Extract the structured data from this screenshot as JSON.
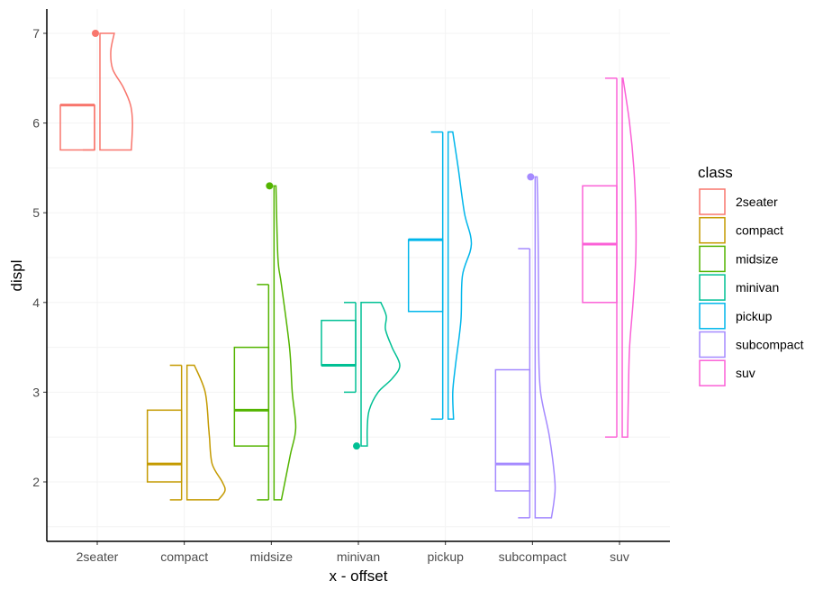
{
  "chart_data": {
    "type": "boxplot-violin",
    "xlabel": "x - offset",
    "ylabel": "displ",
    "ylim": [
      1.35,
      7.27
    ],
    "yticks": [
      2,
      3,
      4,
      5,
      6,
      7
    ],
    "grid": true,
    "legend": {
      "title": "class",
      "placement": "right"
    },
    "categories": [
      "2seater",
      "compact",
      "midsize",
      "minivan",
      "pickup",
      "subcompact",
      "suv"
    ],
    "colors": [
      "#F8766D",
      "#C49A00",
      "#53B400",
      "#00C094",
      "#00B6EB",
      "#A58AFF",
      "#FB61D7"
    ],
    "boxes": [
      {
        "min": 5.7,
        "q1": 5.7,
        "median": 6.2,
        "q3": 6.2,
        "max": 6.2,
        "outliers": [
          7.0
        ]
      },
      {
        "min": 1.8,
        "q1": 2.0,
        "median": 2.2,
        "q3": 2.8,
        "max": 3.3,
        "outliers": []
      },
      {
        "min": 1.8,
        "q1": 2.4,
        "median": 2.8,
        "q3": 3.5,
        "max": 4.2,
        "outliers": [
          5.3
        ]
      },
      {
        "min": 3.0,
        "q1": 3.3,
        "median": 3.3,
        "q3": 3.8,
        "max": 4.0,
        "outliers": [
          2.4
        ]
      },
      {
        "min": 2.7,
        "q1": 3.9,
        "median": 4.7,
        "q3": 4.7,
        "max": 5.9,
        "outliers": []
      },
      {
        "min": 1.6,
        "q1": 1.9,
        "median": 2.2,
        "q3": 3.25,
        "max": 4.6,
        "outliers": [
          5.4
        ]
      },
      {
        "min": 2.5,
        "q1": 4.0,
        "median": 4.65,
        "q3": 5.3,
        "max": 6.5,
        "outliers": []
      }
    ],
    "violins": [
      [
        [
          7.0,
          0.37
        ],
        [
          6.8,
          0.28
        ],
        [
          6.6,
          0.33
        ],
        [
          6.4,
          0.6
        ],
        [
          6.2,
          0.79
        ],
        [
          6.0,
          0.84
        ],
        [
          5.7,
          0.81
        ]
      ],
      [
        [
          3.3,
          0.19
        ],
        [
          3.0,
          0.47
        ],
        [
          2.6,
          0.56
        ],
        [
          2.5,
          0.58
        ],
        [
          2.2,
          0.65
        ],
        [
          2.0,
          0.91
        ],
        [
          1.9,
          0.98
        ],
        [
          1.8,
          0.81
        ]
      ],
      [
        [
          5.3,
          0.05
        ],
        [
          4.5,
          0.1
        ],
        [
          4.2,
          0.19
        ],
        [
          3.5,
          0.4
        ],
        [
          3.0,
          0.47
        ],
        [
          2.6,
          0.56
        ],
        [
          2.3,
          0.42
        ],
        [
          1.8,
          0.19
        ]
      ],
      [
        [
          4.0,
          0.51
        ],
        [
          3.85,
          0.65
        ],
        [
          3.7,
          0.63
        ],
        [
          3.5,
          0.8
        ],
        [
          3.3,
          1.0
        ],
        [
          3.15,
          0.8
        ],
        [
          3.0,
          0.44
        ],
        [
          2.8,
          0.21
        ],
        [
          2.6,
          0.16
        ],
        [
          2.4,
          0.16
        ]
      ],
      [
        [
          5.9,
          0.12
        ],
        [
          5.5,
          0.26
        ],
        [
          5.0,
          0.42
        ],
        [
          4.65,
          0.6
        ],
        [
          4.3,
          0.37
        ],
        [
          3.8,
          0.33
        ],
        [
          3.3,
          0.19
        ],
        [
          3.0,
          0.12
        ],
        [
          2.7,
          0.14
        ]
      ],
      [
        [
          5.4,
          0.05
        ],
        [
          5.0,
          0.07
        ],
        [
          4.0,
          0.09
        ],
        [
          3.5,
          0.09
        ],
        [
          3.0,
          0.14
        ],
        [
          2.5,
          0.37
        ],
        [
          2.0,
          0.51
        ],
        [
          1.8,
          0.49
        ],
        [
          1.6,
          0.42
        ]
      ],
      [
        [
          6.5,
          0.02
        ],
        [
          6.0,
          0.19
        ],
        [
          5.5,
          0.3
        ],
        [
          5.0,
          0.35
        ],
        [
          4.5,
          0.35
        ],
        [
          4.0,
          0.28
        ],
        [
          3.5,
          0.19
        ],
        [
          3.0,
          0.16
        ],
        [
          2.5,
          0.14
        ]
      ]
    ]
  }
}
